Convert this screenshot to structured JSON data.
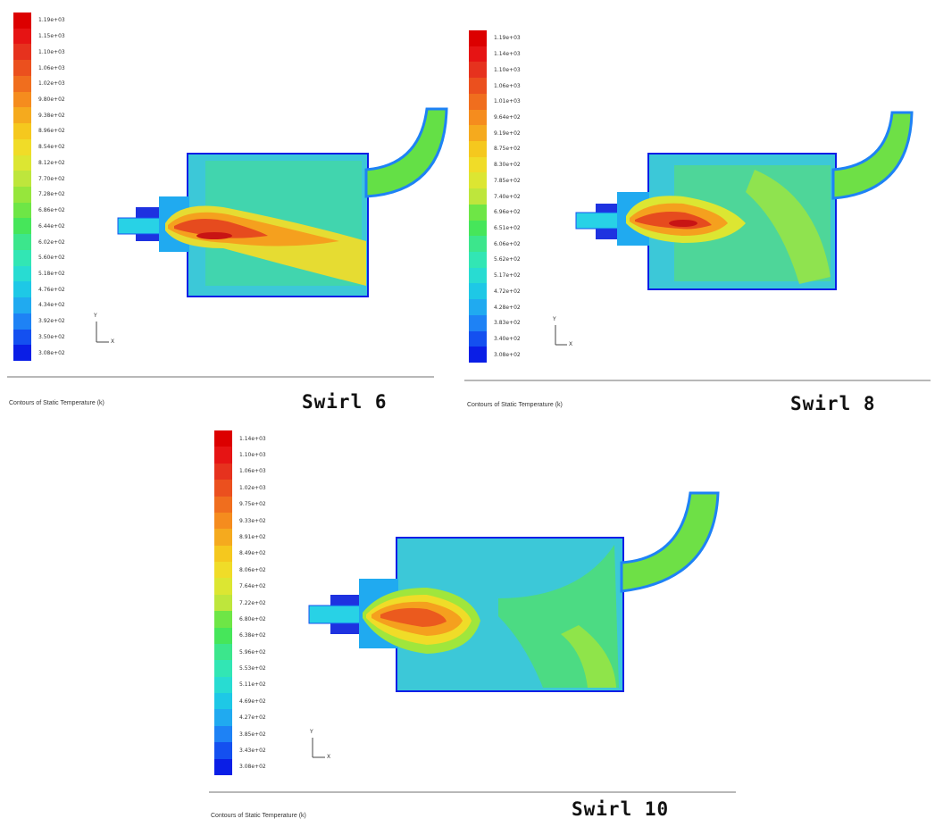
{
  "panels": [
    {
      "id": "swirl-6",
      "swirl_label": "Swirl 6",
      "caption": "Contours of Static Temperature (k)",
      "legend_values": [
        "1.19e+03",
        "1.15e+03",
        "1.10e+03",
        "1.06e+03",
        "1.02e+03",
        "9.80e+02",
        "9.38e+02",
        "8.96e+02",
        "8.54e+02",
        "8.12e+02",
        "7.70e+02",
        "7.28e+02",
        "6.86e+02",
        "6.44e+02",
        "6.02e+02",
        "5.60e+02",
        "5.18e+02",
        "4.76e+02",
        "4.34e+02",
        "3.92e+02",
        "3.50e+02",
        "3.08e+02"
      ],
      "axis": {
        "y": "Y",
        "x": "X"
      }
    },
    {
      "id": "swirl-8",
      "swirl_label": "Swirl 8",
      "caption": "Contours of Static Temperature (k)",
      "legend_values": [
        "1.19e+03",
        "1.14e+03",
        "1.10e+03",
        "1.06e+03",
        "1.01e+03",
        "9.64e+02",
        "9.19e+02",
        "8.75e+02",
        "8.30e+02",
        "7.85e+02",
        "7.40e+02",
        "6.96e+02",
        "6.51e+02",
        "6.06e+02",
        "5.62e+02",
        "5.17e+02",
        "4.72e+02",
        "4.28e+02",
        "3.83e+02",
        "3.40e+02",
        "3.08e+02"
      ],
      "axis": {
        "y": "Y",
        "x": "X"
      }
    },
    {
      "id": "swirl-10",
      "swirl_label": "Swirl 10",
      "caption": "Contours of Static Temperature (k)",
      "legend_values": [
        "1.14e+03",
        "1.10e+03",
        "1.06e+03",
        "1.02e+03",
        "9.75e+02",
        "9.33e+02",
        "8.91e+02",
        "8.49e+02",
        "8.06e+02",
        "7.64e+02",
        "7.22e+02",
        "6.80e+02",
        "6.38e+02",
        "5.96e+02",
        "5.53e+02",
        "5.11e+02",
        "4.69e+02",
        "4.27e+02",
        "3.85e+02",
        "3.43e+02",
        "3.08e+02"
      ],
      "axis": {
        "y": "Y",
        "x": "X"
      }
    }
  ],
  "colormap": [
    "#0a1ee6",
    "#1450f0",
    "#1e82f5",
    "#20aaf0",
    "#1ec8e6",
    "#28dcd2",
    "#32e6b4",
    "#3ce68c",
    "#46e65a",
    "#6ee646",
    "#96e63c",
    "#bee63c",
    "#dce632",
    "#f0dc28",
    "#f5c81e",
    "#f5aa1e",
    "#f58c1e",
    "#f06e1e",
    "#eb501e",
    "#e6321e",
    "#e61414",
    "#dc0000"
  ]
}
